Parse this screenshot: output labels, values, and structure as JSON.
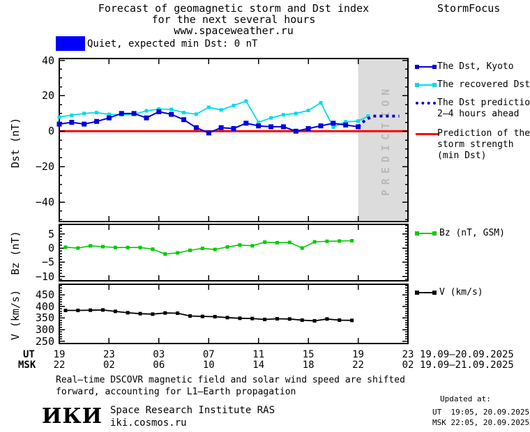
{
  "header": {
    "title_line1": "Forecast of geomagnetic storm and Dst index",
    "title_line2": "for the next several hours",
    "title_line3": "www.spaceweather.ru",
    "brand": "StormFocus"
  },
  "status": {
    "label": "Quiet, expected min Dst: 0 nT",
    "swatch_color": "#0000ff"
  },
  "legend": {
    "dst_kyoto": "The Dst, Kyoto",
    "recovered": "The recovered Dst",
    "prediction_line1": "The Dst prediction",
    "prediction_line2": "2–4 hours ahead",
    "strength_line1": "Prediction of the",
    "strength_line2": "storm strength",
    "strength_line3": "(min Dst)",
    "bz": "Bz (nT, GSM)",
    "v": "V (km/s)"
  },
  "axis": {
    "ut_label": "UT",
    "msk_label": "MSK",
    "ut_hours": [
      "19",
      "23",
      "03",
      "07",
      "11",
      "15",
      "19",
      "23"
    ],
    "msk_hours": [
      "22",
      "02",
      "06",
      "10",
      "14",
      "18",
      "22",
      "02"
    ],
    "ut_dates": "19.09–20.09.2025",
    "msk_dates": "19.09–21.09.2025"
  },
  "footer": {
    "note_line1": "Real–time DSCOVR magnetic field and solar wind speed are shifted",
    "note_line2": "forward, accounting for L1–Earth propagation",
    "logo": "ИКИ",
    "institute": "Space Research Institute RAS",
    "site": "iki.cosmos.ru",
    "updated_title": "Updated at:",
    "updated_ut": "UT  19:05, 20.09.2025",
    "updated_msk": "MSK 22:05, 20.09.2025"
  },
  "colors": {
    "dst_kyoto": "#0000dd",
    "recovered": "#00dde6",
    "prediction": "#0000cc",
    "strength_line": "#ff0000",
    "bz": "#00cc00",
    "v": "#000000",
    "zone_bg": "#dcdcdc",
    "zone_text": "#b9b9b9",
    "quiet_swatch": "#0000ff"
  },
  "chart_data": [
    {
      "type": "line",
      "name": "dst-panel",
      "ylabel": "Dst (nT)",
      "ylim": [
        -51,
        41
      ],
      "yticks": [
        40,
        20,
        0,
        -20,
        -40
      ],
      "ytick_minor": 5,
      "xlim": [
        0,
        28
      ],
      "xticks": [
        0,
        4,
        8,
        12,
        16,
        20,
        24,
        28
      ],
      "x_unit": "hours since 19:00 UT 19.09.2025",
      "zero_line": {
        "color": "#ff0000",
        "meaning": "Prediction of the storm strength (min Dst) = 0 nT"
      },
      "prediction_zone": {
        "start_hour": 24,
        "end_hour": 28,
        "label": "PREDICTION"
      },
      "series": [
        {
          "id": "recovered-dst",
          "name": "The recovered Dst",
          "color": "#00dde6",
          "width": 1.8,
          "marker": 5,
          "x": [
            0,
            1,
            2,
            3,
            4,
            5,
            6,
            7,
            8,
            9,
            10,
            11,
            12,
            13,
            14,
            15,
            16,
            17,
            18,
            19,
            20,
            21,
            22,
            23,
            24,
            24.8
          ],
          "y": [
            8,
            9,
            10,
            10.5,
            9.5,
            9.3,
            9.5,
            11.5,
            12.5,
            12.3,
            10.5,
            9.6,
            13.5,
            12,
            14.5,
            17,
            5,
            7.5,
            9.3,
            10,
            11.7,
            16,
            2.3,
            5.3,
            5.7,
            8.5
          ]
        },
        {
          "id": "dst-kyoto",
          "name": "The Dst, Kyoto",
          "color": "#0000dd",
          "width": 2,
          "marker": 7,
          "x": [
            0,
            1,
            2,
            3,
            4,
            5,
            6,
            7,
            8,
            9,
            10,
            11,
            12,
            13,
            14,
            15,
            16,
            17,
            18,
            19,
            20,
            21,
            22,
            23,
            24
          ],
          "y": [
            4,
            5,
            4,
            5.5,
            7.5,
            10,
            10,
            7.5,
            11,
            9.5,
            6.5,
            2,
            -1,
            2,
            1.5,
            4.5,
            3,
            2.5,
            2.5,
            0,
            1.5,
            3,
            4.5,
            3.5,
            2.5
          ]
        },
        {
          "id": "dst-prediction",
          "name": "The Dst prediction 2–4 hours ahead",
          "color": "#0000cc",
          "width": 4,
          "dashed": true,
          "marker": 0,
          "x": [
            24,
            24.6,
            25.2,
            27.3
          ],
          "y": [
            2.5,
            6.5,
            8.5,
            8.5
          ]
        }
      ]
    },
    {
      "type": "line",
      "name": "bz-panel",
      "ylabel": "Bz (nT)",
      "ylim": [
        -11.6,
        8.4
      ],
      "yticks": [
        5,
        0,
        -5,
        -10
      ],
      "ytick_minor": 1,
      "xlim": [
        0,
        28
      ],
      "xticks": [
        0,
        4,
        8,
        12,
        16,
        20,
        24,
        28
      ],
      "series": [
        {
          "id": "bz",
          "name": "Bz (nT, GSM)",
          "color": "#00cc00",
          "width": 1.6,
          "marker": 5,
          "x": [
            0.5,
            1.5,
            2.5,
            3.5,
            4.5,
            5.5,
            6.5,
            7.5,
            8.5,
            9.5,
            10.5,
            11.5,
            12.5,
            13.5,
            14.5,
            15.5,
            16.5,
            17.5,
            18.5,
            19.5,
            20.5,
            21.5,
            22.5,
            23.5
          ],
          "y": [
            0.3,
            0,
            0.8,
            0.5,
            0.2,
            0.2,
            0.2,
            -0.4,
            -2.1,
            -1.7,
            -0.8,
            -0.1,
            -0.5,
            0.4,
            1.1,
            0.8,
            2.1,
            1.9,
            2.0,
            0.0,
            2.2,
            2.4,
            2.5,
            2.6
          ]
        }
      ]
    },
    {
      "type": "line",
      "name": "v-panel",
      "ylabel": "V (km/s)",
      "ylim": [
        240,
        496
      ],
      "yticks": [
        450,
        400,
        350,
        300,
        250
      ],
      "ytick_minor": 10,
      "xlim": [
        0,
        28
      ],
      "xticks": [
        0,
        4,
        8,
        12,
        16,
        20,
        24,
        28
      ],
      "series": [
        {
          "id": "v",
          "name": "V (km/s)",
          "color": "#000000",
          "width": 1.8,
          "marker": 5,
          "x": [
            0.5,
            1.5,
            2.5,
            3.5,
            4.5,
            5.5,
            6.5,
            7.5,
            8.5,
            9.5,
            10.5,
            11.5,
            12.5,
            13.5,
            14.5,
            15.5,
            16.5,
            17.5,
            18.5,
            19.5,
            20.5,
            21.5,
            22.5,
            23.5
          ],
          "y": [
            383,
            383,
            384,
            385,
            379,
            373,
            369,
            367,
            372,
            371,
            359,
            357,
            356,
            352,
            349,
            348,
            344,
            347,
            346,
            341,
            338,
            346,
            341,
            340
          ]
        }
      ]
    }
  ]
}
